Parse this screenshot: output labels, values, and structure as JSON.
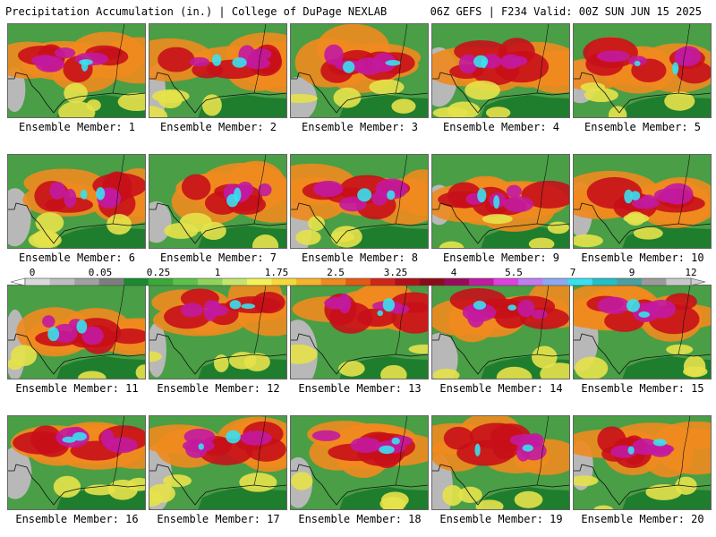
{
  "header": {
    "left_title": "Precipitation Accumulation (in.) | College of DuPage NEXLAB",
    "right_title": "06Z GEFS | F234 Valid: 00Z SUN JUN 15 2025"
  },
  "colorbar": {
    "tick_labels": [
      "0",
      "0.05",
      "0.25",
      "1",
      "1.75",
      "2.5",
      "3.25",
      "4",
      "5.5",
      "7",
      "9",
      "12"
    ],
    "colors": [
      "#d9d9d9",
      "#bdbdbd",
      "#a0a0a0",
      "#7d7d7d",
      "#1a8a32",
      "#3aa83a",
      "#5cc04a",
      "#8fd35a",
      "#c3e66a",
      "#f2f25a",
      "#f5d83c",
      "#f5b22a",
      "#f08a1e",
      "#e45a14",
      "#d0261a",
      "#b0101a",
      "#8c0a1a",
      "#9a0a5a",
      "#c21aa0",
      "#e040e0",
      "#c07cf0",
      "#8ca8f0",
      "#38e0f0",
      "#20c0c8",
      "#4aa0a0",
      "#9a9a9a",
      "#c8c8c8"
    ]
  },
  "panels": [
    {
      "label": "Ensemble Member: 1"
    },
    {
      "label": "Ensemble Member: 2"
    },
    {
      "label": "Ensemble Member: 3"
    },
    {
      "label": "Ensemble Member: 4"
    },
    {
      "label": "Ensemble Member: 5"
    },
    {
      "label": "Ensemble Member: 6"
    },
    {
      "label": "Ensemble Member: 7"
    },
    {
      "label": "Ensemble Member: 8"
    },
    {
      "label": "Ensemble Member: 9"
    },
    {
      "label": "Ensemble Member: 10"
    },
    {
      "label": "Ensemble Member: 11"
    },
    {
      "label": "Ensemble Member: 12"
    },
    {
      "label": "Ensemble Member: 13"
    },
    {
      "label": "Ensemble Member: 14"
    },
    {
      "label": "Ensemble Member: 15"
    },
    {
      "label": "Ensemble Member: 16"
    },
    {
      "label": "Ensemble Member: 17"
    },
    {
      "label": "Ensemble Member: 18"
    },
    {
      "label": "Ensemble Member: 19"
    },
    {
      "label": "Ensemble Member: 20"
    }
  ]
}
